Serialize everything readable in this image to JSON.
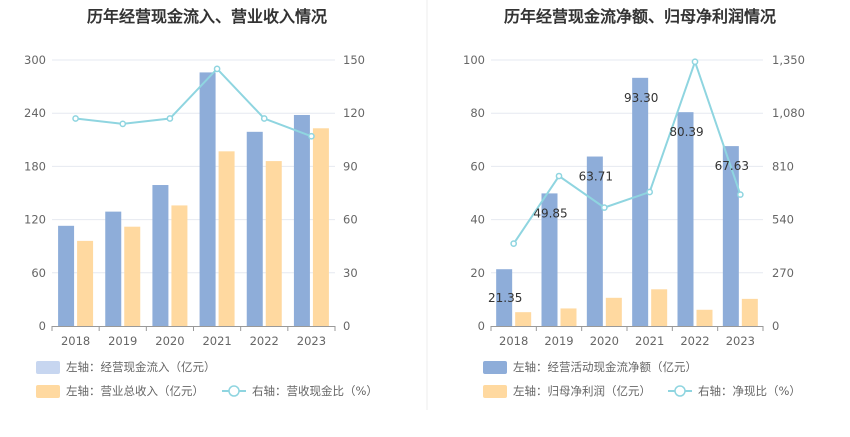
{
  "colors": {
    "bar_primary": "#8eadd9",
    "bar_secondary": "#ffd9a0",
    "line": "#8fd5e0",
    "legend_swatch_light": "#c7d6f0",
    "grid": "#e6e9f0",
    "axis": "#999999",
    "text": "#333333",
    "tick": "#666666"
  },
  "chart_data": [
    {
      "type": "bar",
      "title": "历年经营现金流入、营业收入情况",
      "categories": [
        "2018",
        "2019",
        "2020",
        "2021",
        "2022",
        "2023"
      ],
      "left_axis": {
        "ylim": [
          0,
          300
        ],
        "ticks": [
          "0",
          "60",
          "120",
          "180",
          "240",
          "300"
        ]
      },
      "right_axis": {
        "ylim": [
          0,
          150
        ],
        "ticks": [
          "0",
          "30",
          "60",
          "90",
          "120",
          "150"
        ]
      },
      "series": [
        {
          "name": "左轴：经营现金流入（亿元）",
          "type": "bar",
          "axis": "left",
          "values": [
            113,
            129,
            159,
            286,
            219,
            238
          ]
        },
        {
          "name": "左轴：营业总收入（亿元）",
          "type": "bar",
          "axis": "left",
          "values": [
            96,
            112,
            136,
            197,
            186,
            223
          ]
        },
        {
          "name": "右轴：营收现金比（%）",
          "type": "line",
          "axis": "right",
          "values": [
            117,
            114,
            117,
            145,
            117,
            107
          ]
        }
      ],
      "data_labels": []
    },
    {
      "type": "bar",
      "title": "历年经营现金流净额、归母净利润情况",
      "categories": [
        "2018",
        "2019",
        "2020",
        "2021",
        "2022",
        "2023"
      ],
      "left_axis": {
        "ylim": [
          0,
          100
        ],
        "ticks": [
          "0",
          "20",
          "40",
          "60",
          "80",
          "100"
        ]
      },
      "right_axis": {
        "ylim": [
          0,
          1350
        ],
        "ticks": [
          "0",
          "270",
          "540",
          "810",
          "1,080",
          "1,350"
        ]
      },
      "series": [
        {
          "name": "左轴：经营活动现金流净额（亿元）",
          "type": "bar",
          "axis": "left",
          "values": [
            21.35,
            49.85,
            63.71,
            93.3,
            80.39,
            67.63
          ]
        },
        {
          "name": "左轴：归母净利润（亿元）",
          "type": "bar",
          "axis": "left",
          "values": [
            5.2,
            6.6,
            10.6,
            13.8,
            6.1,
            10.2
          ]
        },
        {
          "name": "右轴：净现比（%）",
          "type": "line",
          "axis": "right",
          "values": [
            418,
            761,
            601,
            680,
            1341,
            667
          ]
        }
      ],
      "data_labels": [
        "21.35",
        "49.85",
        "63.71",
        "93.30",
        "80.39",
        "67.63"
      ]
    }
  ]
}
